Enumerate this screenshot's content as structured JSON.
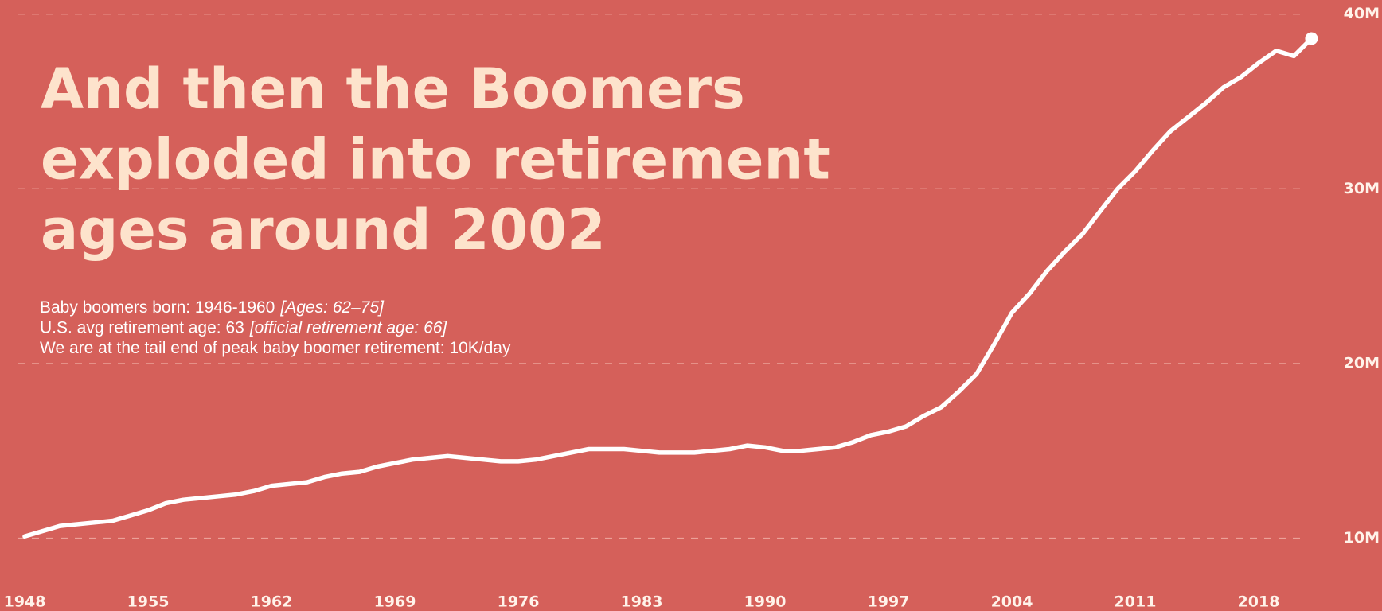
{
  "chart_data": {
    "type": "line",
    "title_lines": [
      "And then the Boomers",
      "exploded into retirement",
      "ages around 2002"
    ],
    "notes": [
      [
        "Baby boomers born: 1946-1960",
        "[Ages: 62–75]"
      ],
      [
        "U.S. avg retirement age: 63",
        "[official retirement age: 66]"
      ],
      [
        "We are at the tail end of peak baby boomer retirement: 10K/day"
      ]
    ],
    "x": [
      1948,
      1950,
      1952,
      1953,
      1954,
      1955,
      1956,
      1957,
      1958,
      1959,
      1960,
      1961,
      1962,
      1963,
      1964,
      1965,
      1966,
      1967,
      1968,
      1969,
      1970,
      1971,
      1972,
      1973,
      1974,
      1975,
      1976,
      1977,
      1978,
      1979,
      1980,
      1981,
      1982,
      1983,
      1984,
      1985,
      1986,
      1987,
      1988,
      1989,
      1990,
      1991,
      1992,
      1993,
      1994,
      1995,
      1996,
      1997,
      1998,
      1999,
      2000,
      2001,
      2002,
      2003,
      2004,
      2005,
      2006,
      2007,
      2008,
      2009,
      2010,
      2011,
      2012,
      2013,
      2014,
      2015,
      2016,
      2017,
      2018,
      2019,
      2020,
      2021
    ],
    "values": [
      10.1,
      10.7,
      10.9,
      11.0,
      11.3,
      11.6,
      12.0,
      12.2,
      12.3,
      12.4,
      12.5,
      12.7,
      13.0,
      13.1,
      13.2,
      13.5,
      13.7,
      13.8,
      14.1,
      14.3,
      14.5,
      14.6,
      14.7,
      14.6,
      14.5,
      14.4,
      14.4,
      14.5,
      14.7,
      14.9,
      15.1,
      15.1,
      15.1,
      15.0,
      14.9,
      14.9,
      14.9,
      15.0,
      15.1,
      15.3,
      15.2,
      15.0,
      15.0,
      15.1,
      15.2,
      15.5,
      15.9,
      16.1,
      16.4,
      17.0,
      17.5,
      18.4,
      19.4,
      21.1,
      22.9,
      24.0,
      25.3,
      26.4,
      27.4,
      28.7,
      30.0,
      31.0,
      32.2,
      33.3,
      34.1,
      34.9,
      35.8,
      36.4,
      37.2,
      37.9,
      37.6,
      38.6
    ],
    "color": "#ffffff",
    "xlim": [
      1947,
      2025
    ],
    "xticks": [
      1948,
      1955,
      1962,
      1969,
      1976,
      1983,
      1990,
      1997,
      2004,
      2011,
      2018
    ],
    "ylim": [
      10,
      40
    ],
    "yticks": [
      {
        "value": 10,
        "label": "10M"
      },
      {
        "value": 20,
        "label": "20M"
      },
      {
        "value": 30,
        "label": "30M"
      },
      {
        "value": 40,
        "label": "40M"
      }
    ],
    "grid": true
  }
}
